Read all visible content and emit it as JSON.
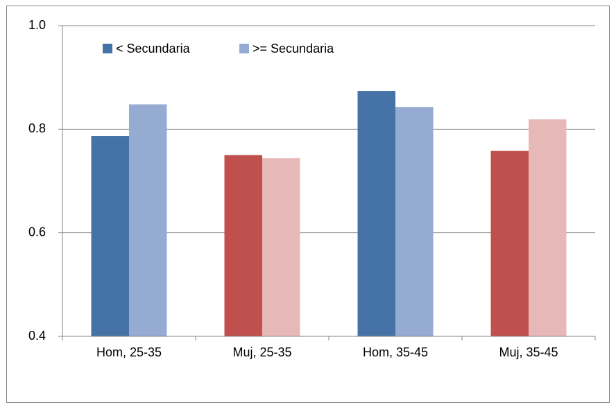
{
  "chart_data": {
    "type": "bar",
    "categories": [
      "Hom, 25-35",
      "Muj, 25-35",
      "Hom, 35-45",
      "Muj, 35-45"
    ],
    "series": [
      {
        "name": "< Secundaria",
        "color": "#4673a7",
        "colors": [
          "#4673a7",
          "#c0504d",
          "#4673a7",
          "#c0504d"
        ],
        "values": [
          0.787,
          0.75,
          0.874,
          0.758
        ]
      },
      {
        "name": ">= Secundaria",
        "color": "#95abd1",
        "colors": [
          "#95abd1",
          "#e6b9b8",
          "#95abd1",
          "#e6b9b8"
        ],
        "values": [
          0.848,
          0.744,
          0.843,
          0.819
        ]
      }
    ],
    "ylim": [
      0.4,
      1
    ],
    "yticks": [
      0.4,
      0.6,
      0.8,
      {
        "value": 1,
        "label": "1.0"
      }
    ],
    "grid": true,
    "legend": "top-left"
  }
}
